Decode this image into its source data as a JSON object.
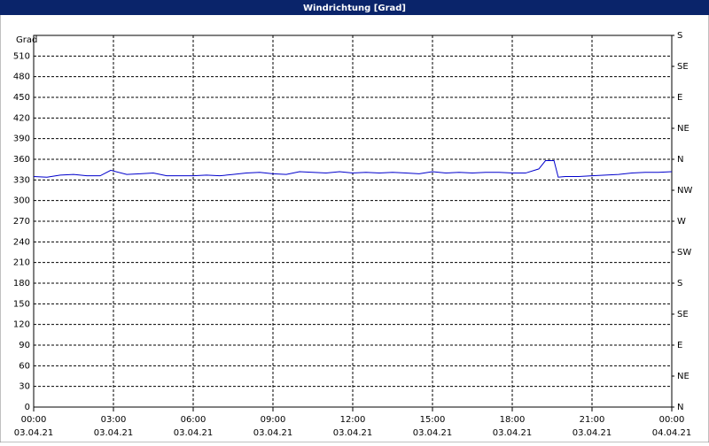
{
  "chart_data": {
    "type": "line",
    "title": "Windrichtung [Grad]",
    "y_label": "Grad",
    "x": [
      0,
      0.5,
      1,
      1.5,
      2,
      2.5,
      2.9,
      3.5,
      4,
      4.5,
      5,
      5.5,
      6,
      6.5,
      7,
      7.5,
      8,
      8.5,
      9,
      9.5,
      10,
      10.5,
      11,
      11.5,
      12,
      12.5,
      13,
      13.5,
      14,
      14.5,
      15,
      15.5,
      16,
      16.5,
      17,
      17.5,
      18,
      18.5,
      19,
      19.25,
      19.57,
      19.73,
      20,
      20.5,
      21,
      21.5,
      22,
      22.5,
      23,
      23.5,
      24
    ],
    "series": [
      {
        "name": "Windrichtung",
        "color": "#0000cc",
        "values": [
          335,
          334,
          337,
          338,
          336,
          336,
          344,
          338,
          339,
          340,
          336,
          336,
          336,
          337,
          336,
          338,
          340,
          341,
          339,
          338,
          342,
          341,
          340,
          342,
          340,
          341,
          340,
          341,
          340,
          339,
          342,
          340,
          341,
          340,
          341,
          341,
          340,
          340,
          346,
          358,
          358,
          334,
          335,
          335,
          336,
          337,
          338,
          340,
          341,
          341,
          342
        ]
      }
    ],
    "xlim": [
      0,
      24
    ],
    "xticks": [
      {
        "value": 0,
        "label": "00:00"
      },
      {
        "value": 3,
        "label": "03:00"
      },
      {
        "value": 6,
        "label": "06:00"
      },
      {
        "value": 9,
        "label": "09:00"
      },
      {
        "value": 12,
        "label": "12:00"
      },
      {
        "value": 15,
        "label": "15:00"
      },
      {
        "value": 18,
        "label": "18:00"
      },
      {
        "value": 21,
        "label": "21:00"
      },
      {
        "value": 24,
        "label": "00:00"
      }
    ],
    "xtick_dates": [
      "03.04.21",
      "03.04.21",
      "03.04.21",
      "03.04.21",
      "03.04.21",
      "03.04.21",
      "03.04.21",
      "03.04.21",
      "04.04.21"
    ],
    "ylim": [
      0,
      540
    ],
    "yticks": [
      0,
      30,
      60,
      90,
      120,
      150,
      180,
      210,
      240,
      270,
      300,
      330,
      360,
      390,
      420,
      450,
      480,
      510
    ],
    "y2lim": [
      0,
      540
    ],
    "y2ticks": [
      {
        "value": 0,
        "label": "N"
      },
      {
        "value": 45,
        "label": "NE"
      },
      {
        "value": 90,
        "label": "E"
      },
      {
        "value": 135,
        "label": "SE"
      },
      {
        "value": 180,
        "label": "S"
      },
      {
        "value": 225,
        "label": "SW"
      },
      {
        "value": 270,
        "label": "W"
      },
      {
        "value": 315,
        "label": "NW"
      },
      {
        "value": 360,
        "label": "N"
      },
      {
        "value": 405,
        "label": "NE"
      },
      {
        "value": 450,
        "label": "E"
      },
      {
        "value": 495,
        "label": "SE"
      },
      {
        "value": 540,
        "label": "S"
      }
    ],
    "grid": true
  }
}
